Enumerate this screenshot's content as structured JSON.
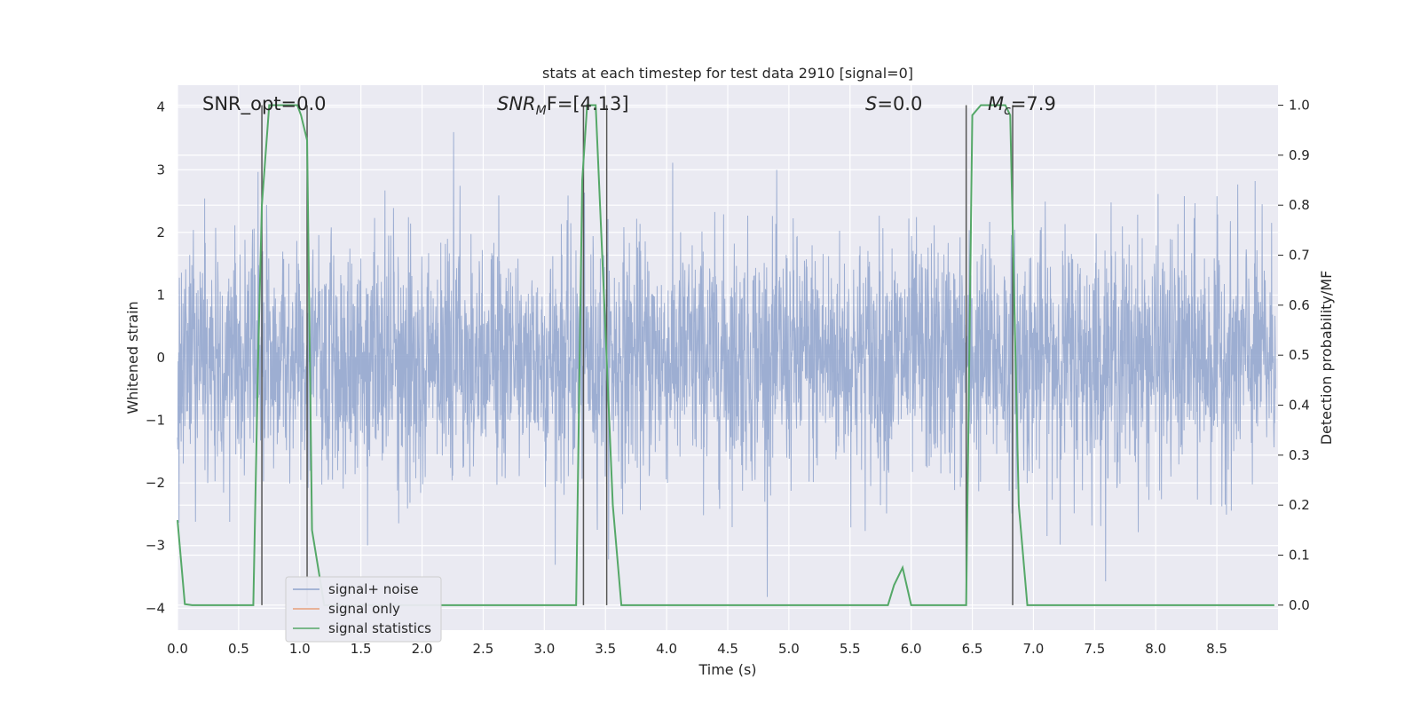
{
  "chart_data": {
    "type": "line",
    "title": "stats at each timestep for test data 2910 [signal=0]",
    "xlabel": "Time (s)",
    "ylabel": "Whitened strain",
    "ylabel_right": "Detection probability/MF",
    "xlim": [
      0.0,
      9.0
    ],
    "ylim": [
      -4.35,
      4.35
    ],
    "ylim_right": [
      -0.05,
      1.04
    ],
    "x_ticks": [
      "0.0",
      "0.5",
      "1.0",
      "1.5",
      "2.0",
      "2.5",
      "3.0",
      "3.5",
      "4.0",
      "4.5",
      "5.0",
      "5.5",
      "6.0",
      "6.5",
      "7.0",
      "7.5",
      "8.0",
      "8.5"
    ],
    "y_ticks": [
      "4",
      "3",
      "2",
      "1",
      "0",
      "−1",
      "−2",
      "−3",
      "−4"
    ],
    "y_ticks_right": [
      "1.0",
      "0.9",
      "0.8",
      "0.7",
      "0.6",
      "0.5",
      "0.4",
      "0.3",
      "0.2",
      "0.1",
      "0.0"
    ],
    "grid": true,
    "legend_placement": "lower-left",
    "annotations": {
      "snr_opt": "SNR_opt=0.0",
      "snr_mf_var": "SNR",
      "snr_mf_sub": "M",
      "snr_mf_rest": "F=[4.13]",
      "s_var": "S",
      "s_rest": "=0.0",
      "mc_var": "M",
      "mc_sub": "c",
      "mc_rest": "=7.9"
    },
    "series": [
      {
        "name": "signal+ noise",
        "color": "#8fa3cc",
        "axis": "left",
        "description_values": "whitened noisy strain over 0–9 s, mostly within ±2, peaks near 3.4 and -4"
      },
      {
        "name": "signal only",
        "color": "#e8a07a",
        "axis": "left",
        "x": [],
        "y": []
      },
      {
        "name": "signal statistics",
        "color": "#55a868",
        "axis": "right",
        "x": [
          0.0,
          0.06,
          0.12,
          0.62,
          0.66,
          0.69,
          0.75,
          0.98,
          1.01,
          1.06,
          1.1,
          1.16,
          1.2,
          1.3,
          3.26,
          3.31,
          3.35,
          3.42,
          3.5,
          3.56,
          3.63,
          5.81,
          5.86,
          5.93,
          6.0,
          6.45,
          6.5,
          6.57,
          6.77,
          6.81,
          6.88,
          6.95,
          7.05,
          8.97
        ],
        "y": [
          0.17,
          0.002,
          0.0,
          0.0,
          0.5,
          0.8,
          1.0,
          1.0,
          0.98,
          0.93,
          0.15,
          0.06,
          0.0,
          0.0,
          0.0,
          0.85,
          1.0,
          1.0,
          0.55,
          0.2,
          0.0,
          0.0,
          0.04,
          0.075,
          0.0,
          0.0,
          0.98,
          1.0,
          1.0,
          0.98,
          0.2,
          0.0,
          0.0,
          0.0
        ]
      }
    ],
    "vertical_lines_x": [
      0.69,
      1.06,
      3.32,
      3.51,
      6.45,
      6.83
    ]
  }
}
